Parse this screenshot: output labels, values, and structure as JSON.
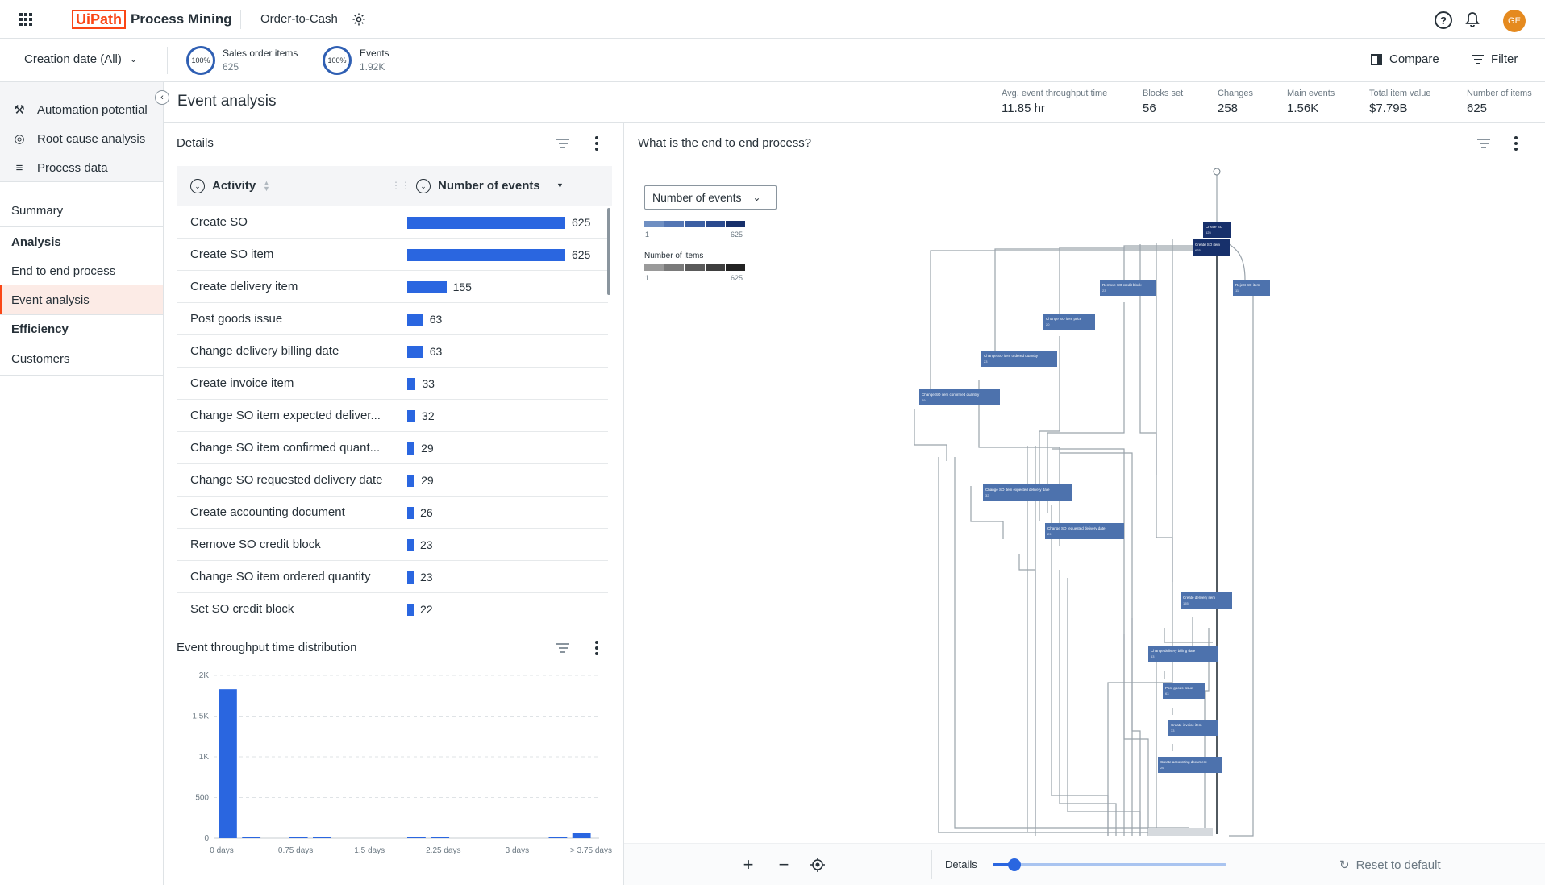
{
  "header": {
    "brand_logo": "UiPath",
    "product": "Process Mining",
    "app_name": "Order-to-Cash",
    "avatar_initials": "GE"
  },
  "filterbar": {
    "date_filter": "Creation date (All)",
    "metric1_pct": "100%",
    "metric1_label": "Sales order items",
    "metric1_value": "625",
    "metric2_pct": "100%",
    "metric2_label": "Events",
    "metric2_value": "1.92K",
    "compare_label": "Compare",
    "filter_label": "Filter"
  },
  "sidebar": {
    "tools": [
      {
        "label": "Automation potential",
        "icon": "robot-arm-icon"
      },
      {
        "label": "Root cause analysis",
        "icon": "root-cause-icon"
      },
      {
        "label": "Process data",
        "icon": "list-icon"
      }
    ],
    "summary": "Summary",
    "analysis": "Analysis",
    "end_to_end": "End to end process",
    "event_analysis": "Event analysis",
    "efficiency": "Efficiency",
    "customers": "Customers"
  },
  "page": {
    "title": "Event analysis"
  },
  "kpis": [
    {
      "label": "Avg. event throughput time",
      "value": "11.85 hr"
    },
    {
      "label": "Blocks set",
      "value": "56"
    },
    {
      "label": "Changes",
      "value": "258"
    },
    {
      "label": "Main events",
      "value": "1.56K"
    },
    {
      "label": "Total item value",
      "value": "$7.79B"
    },
    {
      "label": "Number of items",
      "value": "625"
    }
  ],
  "details": {
    "title": "Details",
    "col_activity": "Activity",
    "col_events": "Number of events",
    "max": 625,
    "rows": [
      {
        "label": "Create SO",
        "value": 625
      },
      {
        "label": "Create SO item",
        "value": 625
      },
      {
        "label": "Create delivery item",
        "value": 155
      },
      {
        "label": "Post goods issue",
        "value": 63
      },
      {
        "label": "Change delivery billing date",
        "value": 63
      },
      {
        "label": "Create invoice item",
        "value": 33
      },
      {
        "label": "Change SO item expected deliver...",
        "value": 32
      },
      {
        "label": "Change SO item confirmed quant...",
        "value": 29
      },
      {
        "label": "Change SO requested delivery date",
        "value": 29
      },
      {
        "label": "Create accounting document",
        "value": 26
      },
      {
        "label": "Remove SO credit block",
        "value": 23
      },
      {
        "label": "Change SO item ordered quantity",
        "value": 23
      },
      {
        "label": "Set SO credit block",
        "value": 22
      }
    ]
  },
  "hist": {
    "title": "Event throughput time distribution"
  },
  "chart_data": {
    "type": "bar",
    "categories": [
      "0 days",
      "",
      "",
      "0.75 days",
      "",
      "",
      "1.5 days",
      "",
      "",
      "2.25 days",
      "",
      "",
      "3 days",
      "",
      "",
      "> 3.75 days"
    ],
    "xticks": [
      "0 days",
      "0.75 days",
      "1.5 days",
      "2.25 days",
      "3 days",
      "> 3.75 days"
    ],
    "yticks": [
      "2K",
      "1.5K",
      "1K",
      "500",
      "0"
    ],
    "values": [
      1830,
      10,
      0,
      5,
      3,
      0,
      0,
      0,
      2,
      10,
      0,
      0,
      0,
      0,
      2,
      62
    ],
    "ylim": [
      0,
      2000
    ]
  },
  "graph": {
    "title": "What is the end to end process?",
    "metric_select": "Number of events",
    "legend1_min": "1",
    "legend1_max": "625",
    "legend2_title": "Number of items",
    "legend2_min": "1",
    "legend2_max": "625",
    "nodes": [
      {
        "label": "Create SO",
        "value": "625",
        "dark": true
      },
      {
        "label": "Create SO item",
        "value": "625",
        "dark": true
      },
      {
        "label": "Reject SO item",
        "value": "11"
      },
      {
        "label": "Remove SO credit block",
        "value": "23"
      },
      {
        "label": "Change SO item price",
        "value": "20"
      },
      {
        "label": "Change SO item ordered quantity",
        "value": "23"
      },
      {
        "label": "Change SO item confirmed quantity",
        "value": "29"
      },
      {
        "label": "Change SO item expected delivery date",
        "value": "32"
      },
      {
        "label": "Change SO requested delivery date",
        "value": "29"
      },
      {
        "label": "Create delivery item",
        "value": "155"
      },
      {
        "label": "Change delivery billing date",
        "value": "63"
      },
      {
        "label": "Post goods issue",
        "value": "63"
      },
      {
        "label": "Create invoice item",
        "value": "33"
      },
      {
        "label": "Create accounting document",
        "value": "26"
      }
    ],
    "details_label": "Details",
    "detail_level": 0.08,
    "reset_label": "Reset to default"
  }
}
